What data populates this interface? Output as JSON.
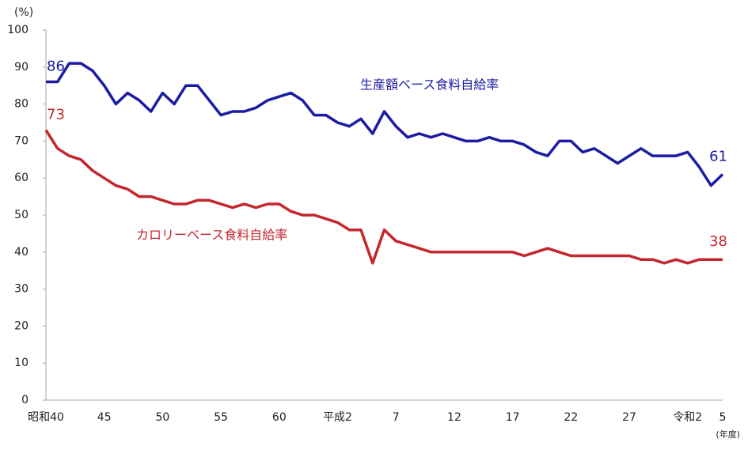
{
  "chart_data": {
    "type": "line",
    "y_label": "(%)",
    "x_label": "(年度)",
    "categories": [
      "昭和40",
      null,
      null,
      null,
      null,
      "45",
      null,
      null,
      null,
      null,
      "50",
      null,
      null,
      null,
      null,
      "55",
      null,
      null,
      null,
      null,
      "60",
      null,
      null,
      null,
      null,
      "平成2",
      null,
      null,
      null,
      null,
      "7",
      null,
      null,
      null,
      null,
      "12",
      null,
      null,
      null,
      null,
      "17",
      null,
      null,
      null,
      null,
      "22",
      null,
      null,
      null,
      null,
      "27",
      null,
      null,
      null,
      null,
      "令和2",
      null,
      null,
      "5"
    ],
    "series": [
      {
        "name": "生産額ベース食料自給率",
        "color": "#1c1ca3",
        "values": [
          86,
          86,
          91,
          91,
          89,
          85,
          80,
          83,
          81,
          78,
          83,
          80,
          85,
          85,
          81,
          77,
          78,
          78,
          79,
          81,
          82,
          83,
          81,
          77,
          77,
          75,
          74,
          76,
          72,
          78,
          74,
          71,
          72,
          71,
          72,
          71,
          70,
          70,
          71,
          70,
          70,
          69,
          67,
          66,
          70,
          70,
          67,
          68,
          66,
          64,
          66,
          68,
          66,
          66,
          66,
          67,
          63,
          58,
          61
        ]
      },
      {
        "name": "カロリーベース食料自給率",
        "color": "#c3272b",
        "values": [
          73,
          68,
          66,
          65,
          62,
          60,
          58,
          57,
          55,
          55,
          54,
          53,
          53,
          54,
          54,
          53,
          52,
          53,
          52,
          53,
          53,
          51,
          50,
          50,
          49,
          48,
          46,
          46,
          37,
          46,
          43,
          42,
          41,
          40,
          40,
          40,
          40,
          40,
          40,
          40,
          40,
          39,
          40,
          41,
          40,
          39,
          39,
          39,
          39,
          39,
          39,
          38,
          38,
          37,
          38,
          37,
          38,
          38,
          38
        ]
      }
    ],
    "ylim": [
      0,
      100
    ],
    "yticks": [
      0,
      10,
      20,
      30,
      40,
      50,
      60,
      70,
      80,
      90,
      100
    ],
    "grid": false
  }
}
